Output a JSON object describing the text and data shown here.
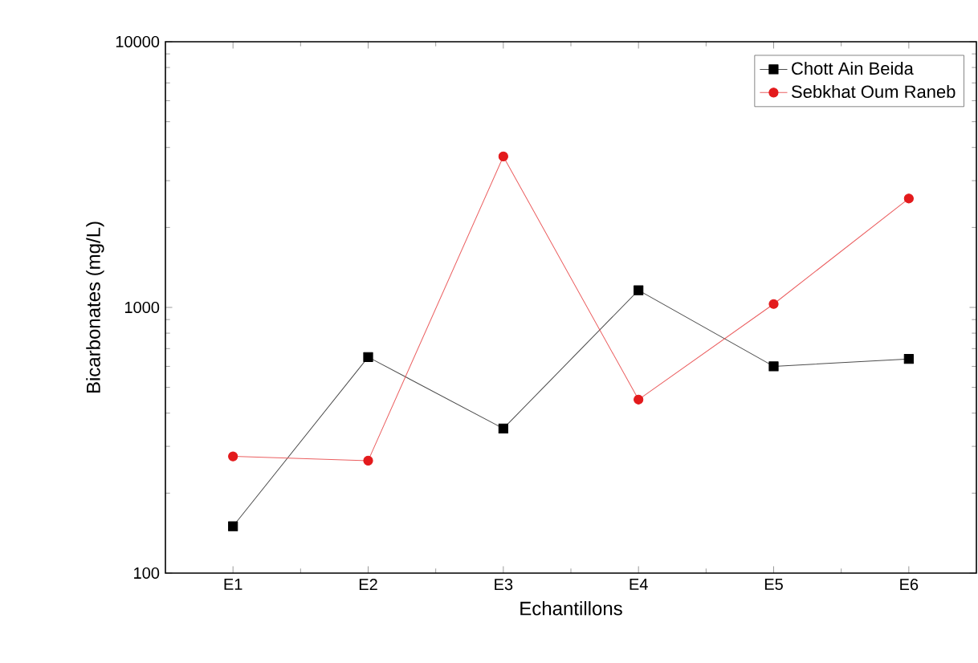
{
  "chart_data": {
    "type": "line",
    "xlabel": "Echantillons",
    "ylabel": "Bicarbonates (mg/L)",
    "categories": [
      "E1",
      "E2",
      "E3",
      "E4",
      "E5",
      "E6"
    ],
    "series": [
      {
        "name": "Chott Ain Beida",
        "color": "#000000",
        "marker": "square",
        "values": [
          150,
          650,
          350,
          1160,
          600,
          640
        ]
      },
      {
        "name": "Sebkhat Oum Raneb",
        "color": "#e31a1c",
        "marker": "circle",
        "values": [
          275,
          265,
          3700,
          450,
          1030,
          2570
        ]
      }
    ],
    "log": "y",
    "ylim": [
      100,
      10000
    ],
    "yticks": [
      100,
      1000,
      10000
    ],
    "legend": "top right",
    "line_style": "solid"
  }
}
